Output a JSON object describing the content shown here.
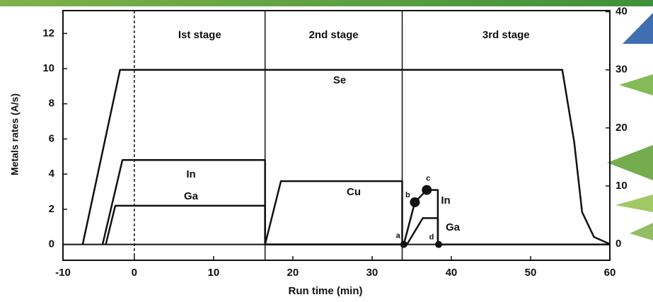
{
  "chart_data": {
    "type": "line",
    "x_label": "Run time (min)",
    "y_label": "Metals rates (A/s)",
    "xlim": [
      -9,
      60
    ],
    "xticks": [
      -10,
      0,
      10,
      20,
      30,
      40,
      50,
      60
    ],
    "ylim": [
      -0.9,
      13.3
    ],
    "yticks": [
      0,
      2,
      4,
      6,
      8,
      10,
      12
    ],
    "y2lim": [
      -2.8,
      40.2
    ],
    "y2ticks": [
      0,
      10,
      20,
      30,
      40
    ],
    "stage_boundaries": [
      0,
      16.5,
      33.8
    ],
    "stages": [
      "Ist stage",
      "2nd stage",
      "3rd stage"
    ],
    "series": [
      {
        "name": "Se",
        "color": "#111111",
        "axis": "y2",
        "x": [
          -6.5,
          -1.8,
          54,
          55.5,
          56.5,
          58,
          60
        ],
        "values": [
          0,
          30,
          30,
          17.6,
          5.5,
          1.2,
          0
        ]
      },
      {
        "name": "In",
        "color": "#111111",
        "x": [
          -4,
          -1.5,
          16.5,
          16.5,
          34,
          35.4,
          36.9,
          38.3,
          38.3,
          60
        ],
        "values": [
          0,
          4.8,
          4.8,
          0,
          0,
          2.4,
          3.1,
          3.1,
          0,
          0
        ]
      },
      {
        "name": "Ga",
        "color": "#111111",
        "x": [
          -3.6,
          -2.4,
          16.5,
          16.5,
          34.4,
          36.4,
          38.3,
          38.3
        ],
        "values": [
          0,
          2.2,
          2.2,
          0,
          0,
          1.5,
          1.5,
          0
        ]
      },
      {
        "name": "Cu",
        "color": "#111111",
        "x": [
          16.5,
          18.5,
          33.8,
          33.8
        ],
        "values": [
          0,
          3.6,
          3.6,
          0
        ]
      }
    ],
    "annotations": [
      {
        "text": "a",
        "x": 34,
        "y": 0
      },
      {
        "text": "b",
        "x": 35.4,
        "y": 2.4
      },
      {
        "text": "c",
        "x": 36.9,
        "y": 3.1
      },
      {
        "text": "d",
        "x": 38.4,
        "y": 0
      }
    ]
  }
}
